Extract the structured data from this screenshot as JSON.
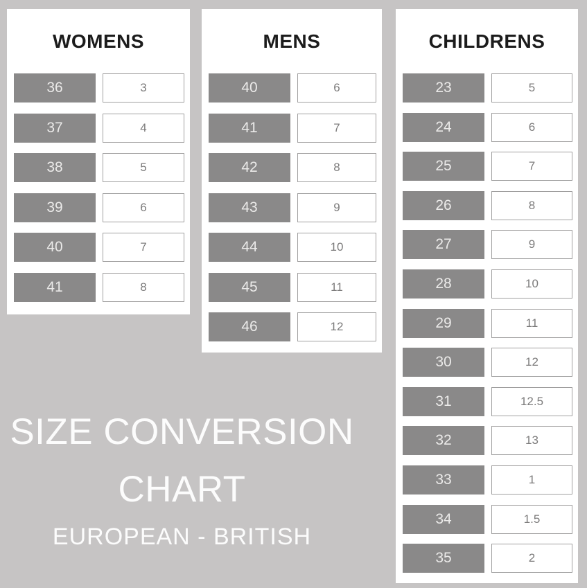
{
  "title": {
    "line1": "SIZE CONVERSION",
    "line2": "CHART",
    "subtitle": "EUROPEAN - BRITISH"
  },
  "panels": [
    {
      "heading": "WOMENS",
      "rows": [
        {
          "eu": "36",
          "uk": "3"
        },
        {
          "eu": "37",
          "uk": "4"
        },
        {
          "eu": "38",
          "uk": "5"
        },
        {
          "eu": "39",
          "uk": "6"
        },
        {
          "eu": "40",
          "uk": "7"
        },
        {
          "eu": "41",
          "uk": "8"
        }
      ]
    },
    {
      "heading": "MENS",
      "rows": [
        {
          "eu": "40",
          "uk": "6"
        },
        {
          "eu": "41",
          "uk": "7"
        },
        {
          "eu": "42",
          "uk": "8"
        },
        {
          "eu": "43",
          "uk": "9"
        },
        {
          "eu": "44",
          "uk": "10"
        },
        {
          "eu": "45",
          "uk": "11"
        },
        {
          "eu": "46",
          "uk": "12"
        }
      ]
    },
    {
      "heading": "CHILDRENS",
      "rows": [
        {
          "eu": "23",
          "uk": "5"
        },
        {
          "eu": "24",
          "uk": "6"
        },
        {
          "eu": "25",
          "uk": "7"
        },
        {
          "eu": "26",
          "uk": "8"
        },
        {
          "eu": "27",
          "uk": "9"
        },
        {
          "eu": "28",
          "uk": "10"
        },
        {
          "eu": "29",
          "uk": "11"
        },
        {
          "eu": "30",
          "uk": "12"
        },
        {
          "eu": "31",
          "uk": "12.5"
        },
        {
          "eu": "32",
          "uk": "13"
        },
        {
          "eu": "33",
          "uk": "1"
        },
        {
          "eu": "34",
          "uk": "1.5"
        },
        {
          "eu": "35",
          "uk": "2"
        }
      ]
    }
  ],
  "colors": {
    "background": "#c6c4c4",
    "panel": "#ffffff",
    "eu_box": "#8a8989",
    "eu_text": "#ebeae9",
    "uk_border": "#a09f9f",
    "uk_text": "#7c7b7b",
    "heading_text": "#1c1c1c",
    "title_text": "#fcfcfc"
  },
  "chart_data": {
    "type": "table",
    "title": "SIZE CONVERSION CHART",
    "subtitle": "EUROPEAN - BRITISH",
    "tables": [
      {
        "name": "WOMENS",
        "columns": [
          "European",
          "British"
        ],
        "rows": [
          [
            36,
            3
          ],
          [
            37,
            4
          ],
          [
            38,
            5
          ],
          [
            39,
            6
          ],
          [
            40,
            7
          ],
          [
            41,
            8
          ]
        ]
      },
      {
        "name": "MENS",
        "columns": [
          "European",
          "British"
        ],
        "rows": [
          [
            40,
            6
          ],
          [
            41,
            7
          ],
          [
            42,
            8
          ],
          [
            43,
            9
          ],
          [
            44,
            10
          ],
          [
            45,
            11
          ],
          [
            46,
            12
          ]
        ]
      },
      {
        "name": "CHILDRENS",
        "columns": [
          "European",
          "British"
        ],
        "rows": [
          [
            23,
            5
          ],
          [
            24,
            6
          ],
          [
            25,
            7
          ],
          [
            26,
            8
          ],
          [
            27,
            9
          ],
          [
            28,
            10
          ],
          [
            29,
            11
          ],
          [
            30,
            12
          ],
          [
            31,
            12.5
          ],
          [
            32,
            13
          ],
          [
            33,
            1
          ],
          [
            34,
            1.5
          ],
          [
            35,
            2
          ]
        ]
      }
    ]
  }
}
